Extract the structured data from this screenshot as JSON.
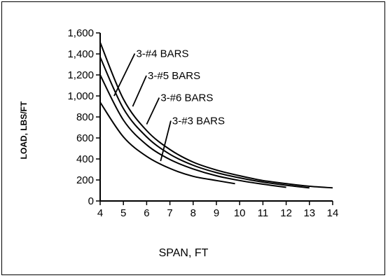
{
  "chart_data": {
    "type": "line",
    "title": "",
    "xlabel": "SPAN, FT",
    "ylabel": "LOAD, LBS/FT",
    "xlim": [
      4,
      14
    ],
    "ylim": [
      0,
      1600
    ],
    "xticks": [
      4,
      5,
      6,
      7,
      8,
      9,
      10,
      11,
      12,
      13,
      14
    ],
    "yticks": [
      0,
      200,
      400,
      600,
      800,
      1000,
      1200,
      1400,
      1600
    ],
    "ytick_labels": [
      "0",
      "200",
      "400",
      "600",
      "800",
      "1,000",
      "1,200",
      "1,400",
      "1,600"
    ],
    "grid": false,
    "series": [
      {
        "name": "3-#4 BARS",
        "x": [
          4,
          5,
          6,
          7,
          8,
          9,
          10,
          11,
          12,
          13,
          14
        ],
        "y": [
          1510,
          970,
          670,
          490,
          370,
          295,
          240,
          195,
          165,
          140,
          125
        ]
      },
      {
        "name": "3-#5 BARS",
        "x": [
          4,
          5,
          6,
          7,
          8,
          9,
          10,
          11,
          12,
          13
        ],
        "y": [
          1370,
          880,
          610,
          445,
          340,
          270,
          220,
          180,
          150,
          125
        ]
      },
      {
        "name": "3-#6 BARS",
        "x": [
          4,
          5,
          6,
          7,
          8,
          9,
          10,
          11,
          12
        ],
        "y": [
          1200,
          770,
          535,
          395,
          305,
          240,
          195,
          160,
          130
        ]
      },
      {
        "name": "3-#3 BARS",
        "x": [
          4,
          5,
          6,
          7,
          8,
          9,
          9.8
        ],
        "y": [
          940,
          610,
          425,
          310,
          235,
          195,
          165
        ]
      }
    ],
    "annotations": [
      {
        "text": "3-#4 BARS",
        "x": 5.55,
        "y": 1370,
        "point_x": 4.6,
        "point_y": 1000
      },
      {
        "text": "3-#5 BARS",
        "x": 6.05,
        "y": 1160,
        "point_x": 5.4,
        "point_y": 900
      },
      {
        "text": "3-#6 BARS",
        "x": 6.6,
        "y": 950,
        "point_x": 6.0,
        "point_y": 730
      },
      {
        "text": "3-#3 BARS",
        "x": 7.1,
        "y": 730,
        "point_x": 6.6,
        "point_y": 380
      }
    ]
  }
}
